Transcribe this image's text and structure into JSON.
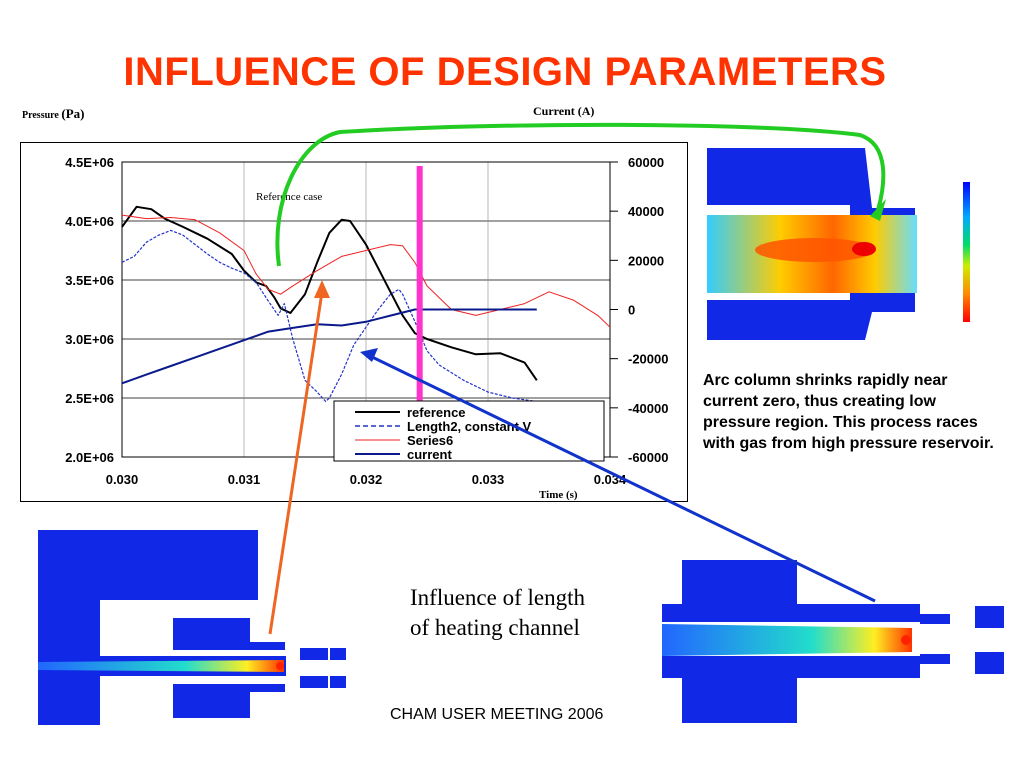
{
  "slide": {
    "title": "INFLUENCE OF DESIGN PARAMETERS",
    "note": "Arc column shrinks rapidly near current zero, thus creating low pressure region. This process races with gas from high pressure reservoir.",
    "caption_line1": "Influence of length",
    "caption_line2": "of heating channel",
    "footer": "CHAM USER MEETING 2006"
  },
  "colors": {
    "title": "#ff3300",
    "reference": "#000000",
    "length2": "#2233cc",
    "series6": "#ee2222",
    "current": "#0a1a8c",
    "marker": "#ff33cc",
    "arrow_green": "#22cc22",
    "arrow_orange": "#ee6622",
    "arrow_blue": "#1133cc",
    "geometry_blue": "#1128e6"
  },
  "chart_data": {
    "type": "line",
    "annotation": "Reference case",
    "x_title": "Time (s)",
    "y_left_title_small": "Pressure",
    "y_left_title": "(Pa)",
    "y_right_title": "Current (A)",
    "xlim": [
      0.03,
      0.034
    ],
    "ylim_left": [
      2000000,
      4500000
    ],
    "ylim_right": [
      -60000,
      60000
    ],
    "x_ticks": [
      "0.030",
      "0.031",
      "0.032",
      "0.033",
      "0.034"
    ],
    "x_tick_values": [
      0.03,
      0.031,
      0.032,
      0.033,
      0.034
    ],
    "y_left_ticks": [
      "2.0E+06",
      "2.5E+06",
      "3.0E+06",
      "3.5E+06",
      "4.0E+06",
      "4.5E+06"
    ],
    "y_left_tick_values": [
      2000000,
      2500000,
      3000000,
      3500000,
      4000000,
      4500000
    ],
    "y_right_ticks": [
      "-60000",
      "-40000",
      "-20000",
      "0",
      "20000",
      "40000",
      "60000"
    ],
    "y_right_tick_values": [
      -60000,
      -40000,
      -20000,
      0,
      20000,
      40000,
      60000
    ],
    "grid": true,
    "legend_position": "bottom-center",
    "vertical_marker_x": 0.03244,
    "series": [
      {
        "name": "reference",
        "axis": "left",
        "style": "solid",
        "x": [
          0.03,
          0.03012,
          0.03024,
          0.03035,
          0.0305,
          0.0307,
          0.0309,
          0.031,
          0.0311,
          0.03118,
          0.03125,
          0.0313,
          0.03138,
          0.0315,
          0.0316,
          0.0317,
          0.0318,
          0.03187,
          0.032,
          0.0321,
          0.0322,
          0.0323,
          0.0324,
          0.0325,
          0.0327,
          0.0329,
          0.0331,
          0.0333,
          0.0334
        ],
        "y": [
          3950000,
          4120000,
          4100000,
          4020000,
          3950000,
          3850000,
          3720000,
          3580000,
          3480000,
          3450000,
          3350000,
          3260000,
          3220000,
          3380000,
          3650000,
          3900000,
          4010000,
          4000000,
          3800000,
          3600000,
          3400000,
          3200000,
          3050000,
          3000000,
          2930000,
          2870000,
          2880000,
          2800000,
          2650000
        ]
      },
      {
        "name": "Length2, constant V",
        "axis": "left",
        "style": "dashed",
        "x": [
          0.03,
          0.0301,
          0.0302,
          0.0303,
          0.0304,
          0.0305,
          0.0306,
          0.0307,
          0.0308,
          0.0309,
          0.031,
          0.0311,
          0.0312,
          0.03128,
          0.03133,
          0.0314,
          0.0315,
          0.0316,
          0.03167,
          0.0317,
          0.0318,
          0.0319,
          0.032,
          0.0321,
          0.0322,
          0.03227,
          0.0323,
          0.0324,
          0.0325,
          0.0326,
          0.0328,
          0.033,
          0.0332,
          0.0334
        ],
        "y": [
          3650000,
          3700000,
          3820000,
          3880000,
          3920000,
          3880000,
          3800000,
          3720000,
          3650000,
          3600000,
          3560000,
          3480000,
          3320000,
          3200000,
          3300000,
          3000000,
          2650000,
          2550000,
          2470000,
          2500000,
          2700000,
          2950000,
          3100000,
          3250000,
          3380000,
          3420000,
          3380000,
          3150000,
          2900000,
          2780000,
          2650000,
          2550000,
          2500000,
          2470000
        ]
      },
      {
        "name": "Series6",
        "axis": "left",
        "style": "solid",
        "x": [
          0.03,
          0.0302,
          0.0304,
          0.0306,
          0.0308,
          0.031,
          0.0311,
          0.0312,
          0.0313,
          0.0314,
          0.0316,
          0.0318,
          0.032,
          0.0322,
          0.0323,
          0.0324,
          0.0325,
          0.0327,
          0.0329,
          0.0331,
          0.0333,
          0.0335,
          0.0337,
          0.0339,
          0.034
        ],
        "y": [
          4050000,
          4020000,
          4030000,
          4010000,
          3900000,
          3750000,
          3550000,
          3420000,
          3380000,
          3450000,
          3580000,
          3700000,
          3750000,
          3800000,
          3790000,
          3650000,
          3450000,
          3250000,
          3200000,
          3250000,
          3300000,
          3400000,
          3330000,
          3200000,
          3100000
        ]
      },
      {
        "name": "current",
        "axis": "right",
        "style": "solid",
        "x": [
          0.03,
          0.0302,
          0.0304,
          0.0306,
          0.0308,
          0.031,
          0.0312,
          0.0314,
          0.0316,
          0.0318,
          0.032,
          0.0322,
          0.0324,
          0.03245,
          0.0334
        ],
        "y": [
          -30000,
          -26500,
          -23000,
          -19500,
          -16000,
          -12500,
          -9000,
          -7500,
          -6000,
          -6500,
          -5000,
          -2500,
          0,
          0,
          0
        ]
      }
    ]
  }
}
